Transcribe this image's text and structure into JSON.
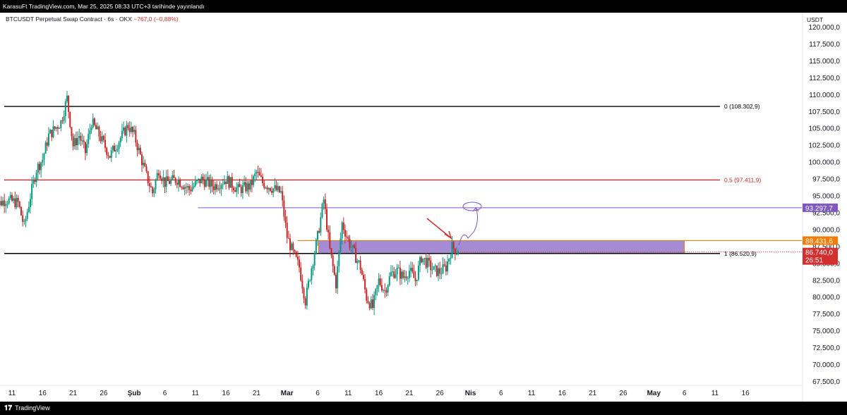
{
  "header": {
    "published": "KarasuFt TradingView.com, Mar 25, 2025 08:33 UTC+3 tarihinde yayınlandı",
    "symbol": "BTCUSDT Perpetual Swap Contract · 6s · OKX",
    "change": "−767,0 (−0,88%)",
    "currency": "USDT"
  },
  "footer": {
    "brand": "TradingView",
    "logo_icon": "tradingview-logo-icon"
  },
  "colors": {
    "up": "#089981",
    "down": "#c62828",
    "fib_top": "#000000",
    "fib_mid": "#c62828",
    "purple": "#7e57c2",
    "zone_fill": "#9575cd",
    "orange": "#f57c00",
    "red_badge": "#d32f2f"
  },
  "chart_data": {
    "type": "candlestick",
    "ylim": [
      67500,
      120000
    ],
    "y_ticks": [
      "120.000,0",
      "117.500,0",
      "115.000,0",
      "112.500,0",
      "110.000,0",
      "107.500,0",
      "105.000,0",
      "102.500,0",
      "100.000,0",
      "97.500,0",
      "95.000,0",
      "92.500,0",
      "90.000,0",
      "87.500,0",
      "85.000,0",
      "82.500,0",
      "80.000,0",
      "77.500,0",
      "75.000,0",
      "72.500,0",
      "70.000,0",
      "67.500,0"
    ],
    "x_ticks": [
      "11",
      "16",
      "21",
      "26",
      "Şub",
      "6",
      "11",
      "16",
      "21",
      "Mar",
      "6",
      "11",
      "16",
      "21",
      "26",
      "Nis",
      "6",
      "11",
      "16",
      "21",
      "26",
      "May",
      "6",
      "11",
      "16"
    ],
    "x_range": [
      "Jan 8",
      "May 20"
    ],
    "price_path": [
      [
        "Jan 8",
        93500
      ],
      [
        "Jan 10",
        94500
      ],
      [
        "Jan 12",
        94000
      ],
      [
        "Jan 13",
        90500
      ],
      [
        "Jan 14",
        95000
      ],
      [
        "Jan 15",
        99000
      ],
      [
        "Jan 16",
        100500
      ],
      [
        "Jan 17",
        104000
      ],
      [
        "Jan 19",
        106000
      ],
      [
        "Jan 20",
        109500
      ],
      [
        "Jan 21",
        102500
      ],
      [
        "Jan 22",
        104000
      ],
      [
        "Jan 23",
        101500
      ],
      [
        "Jan 24",
        106000
      ],
      [
        "Jan 25",
        104500
      ],
      [
        "Jan 27",
        101000
      ],
      [
        "Jan 28",
        102500
      ],
      [
        "Jan 29",
        104000
      ],
      [
        "Jan 30",
        105500
      ],
      [
        "Jan 31",
        104000
      ],
      [
        "Feb 1",
        101000
      ],
      [
        "Feb 2",
        98000
      ],
      [
        "Feb 3",
        95500
      ],
      [
        "Feb 4",
        99000
      ],
      [
        "Feb 5",
        97000
      ],
      [
        "Feb 7",
        97500
      ],
      [
        "Feb 9",
        96000
      ],
      [
        "Feb 11",
        97500
      ],
      [
        "Feb 13",
        96500
      ],
      [
        "Feb 15",
        97500
      ],
      [
        "Feb 17",
        96000
      ],
      [
        "Feb 19",
        96500
      ],
      [
        "Feb 20",
        98500
      ],
      [
        "Feb 21",
        97000
      ],
      [
        "Feb 22",
        96500
      ],
      [
        "Feb 24",
        95500
      ],
      [
        "Feb 25",
        89000
      ],
      [
        "Feb 26",
        86500
      ],
      [
        "Feb 27",
        84500
      ],
      [
        "Feb 28",
        79500
      ],
      [
        "Mar 1",
        84500
      ],
      [
        "Mar 2",
        89000
      ],
      [
        "Mar 3",
        94500
      ],
      [
        "Mar 4",
        87000
      ],
      [
        "Mar 5",
        82000
      ],
      [
        "Mar 6",
        91000
      ],
      [
        "Mar 7",
        88500
      ],
      [
        "Mar 8",
        86500
      ],
      [
        "Mar 9",
        84500
      ],
      [
        "Mar 10",
        80000
      ],
      [
        "Mar 11",
        78500
      ],
      [
        "Mar 12",
        82500
      ],
      [
        "Mar 13",
        81000
      ],
      [
        "Mar 14",
        83500
      ],
      [
        "Mar 15",
        84000
      ],
      [
        "Mar 16",
        83000
      ],
      [
        "Mar 17",
        84000
      ],
      [
        "Mar 18",
        82500
      ],
      [
        "Mar 19",
        86000
      ],
      [
        "Mar 20",
        85000
      ],
      [
        "Mar 21",
        84000
      ],
      [
        "Mar 22",
        83800
      ],
      [
        "Mar 23",
        84500
      ],
      [
        "Mar 24",
        87500
      ],
      [
        "Mar 25",
        86740
      ]
    ],
    "price_levels": [
      {
        "name": "0 (108.302,9)",
        "value": 108302.9,
        "color": "#000000"
      },
      {
        "name": "0,5 (97.411,9)",
        "value": 97411.9,
        "color": "#c62828"
      },
      {
        "name": "1 (86.520,9)",
        "value": 86520.9,
        "color": "#000000"
      }
    ],
    "resistance_line": {
      "value": 93297.7,
      "label": "93.297,7",
      "from": "Feb 11"
    },
    "zone": {
      "low": 86520.9,
      "high": 88431.6,
      "from": "Mar 1",
      "to": "May 1",
      "label": "88.431,6"
    },
    "last_price": {
      "value": 86740.0,
      "label": "86.740,0",
      "countdown": "26:51"
    }
  }
}
